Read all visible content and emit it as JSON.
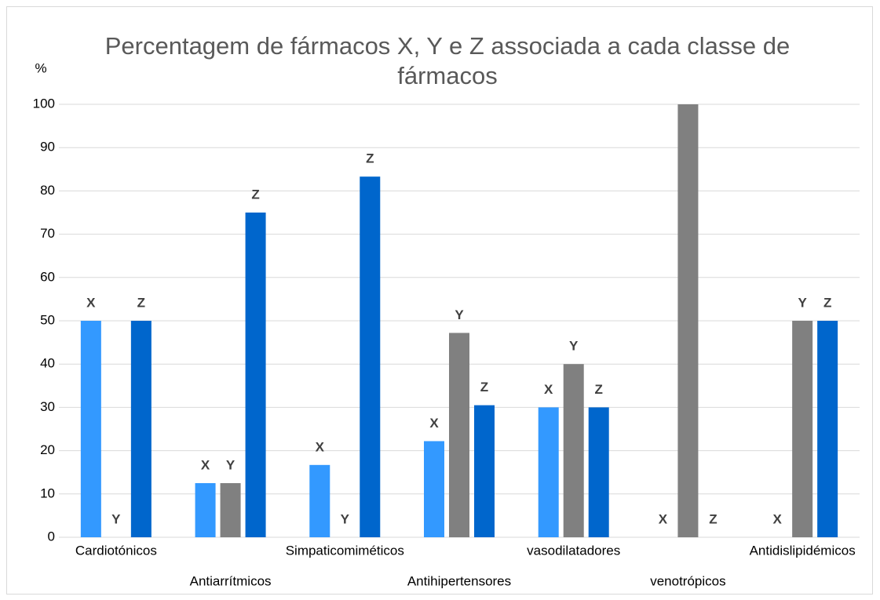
{
  "chart_data": {
    "type": "bar",
    "title": "Percentagem de fármacos X, Y e Z associada a cada classe de fármacos",
    "y_label": "%",
    "categories": [
      "Cardiotónicos",
      "Antiarrítmicos",
      "Simpaticomiméticos",
      "Antihipertensores",
      "vasodilatadores",
      "venotrópicos",
      "Antidislipidémicos"
    ],
    "series": [
      {
        "name": "X",
        "color": "#3399ff",
        "values": [
          50,
          12.5,
          16.7,
          22.2,
          30,
          0,
          0
        ]
      },
      {
        "name": "Y",
        "color": "#808080",
        "values": [
          0,
          12.5,
          0,
          47.2,
          40,
          100,
          50
        ]
      },
      {
        "name": "Z",
        "color": "#0066cc",
        "values": [
          50,
          75,
          83.3,
          30.5,
          30,
          0,
          50
        ]
      }
    ],
    "ylim": [
      0,
      100
    ],
    "yticks": [
      0,
      10,
      20,
      30,
      40,
      50,
      60,
      70,
      80,
      90,
      100
    ],
    "grid": true
  }
}
